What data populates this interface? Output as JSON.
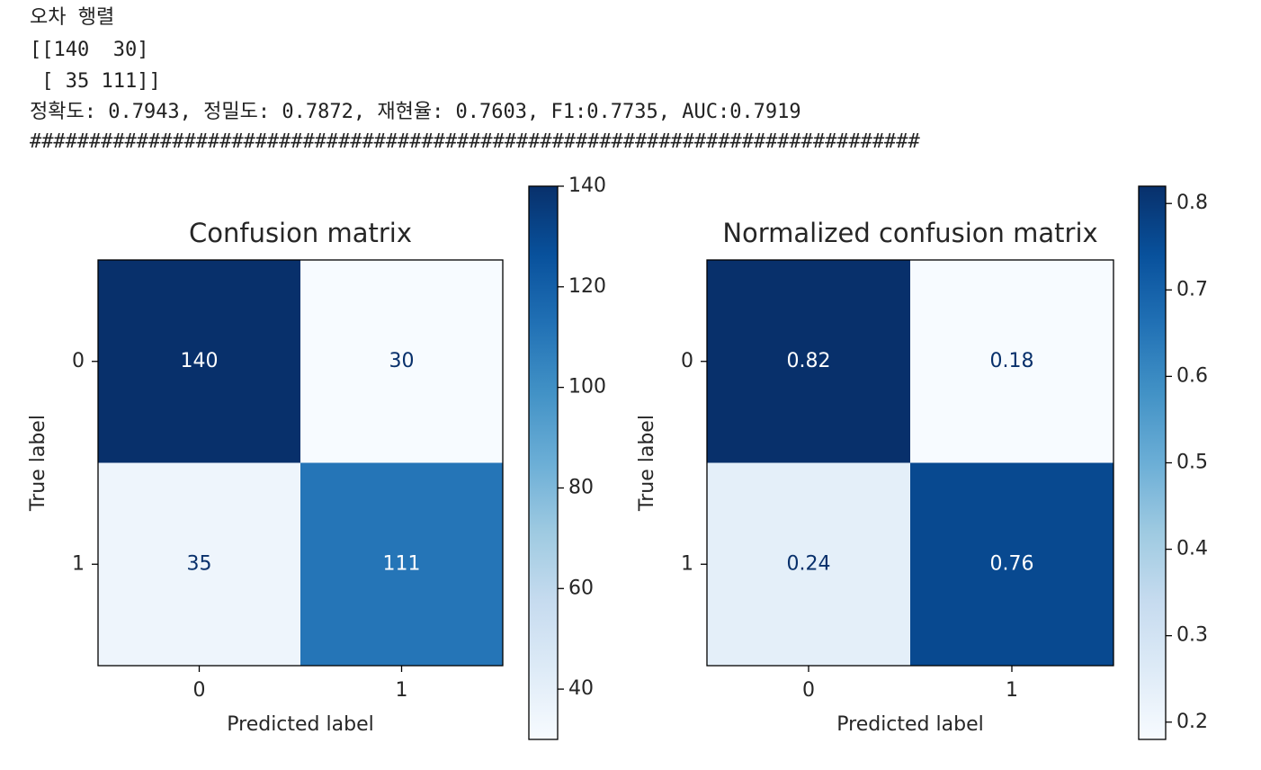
{
  "output": [
    "오차 행렬",
    "[[140  30]",
    " [ 35 111]]",
    "정확도: 0.7943, 정밀도: 0.7872, 재현율: 0.7603, F1:0.7735, AUC:0.7919",
    "###########################################################################"
  ],
  "chart_data": [
    {
      "type": "heatmap",
      "title": "Confusion matrix",
      "x_label": "Predicted label",
      "y_label": "True label",
      "x_categories": [
        "0",
        "1"
      ],
      "y_categories": [
        "0",
        "1"
      ],
      "values": [
        [
          140,
          30
        ],
        [
          35,
          111
        ]
      ],
      "colormap": "Blues",
      "clim": [
        30,
        140
      ],
      "cticks": [
        40,
        60,
        80,
        100,
        120,
        140
      ]
    },
    {
      "type": "heatmap",
      "title": "Normalized confusion matrix",
      "x_label": "Predicted label",
      "y_label": "True label",
      "x_categories": [
        "0",
        "1"
      ],
      "y_categories": [
        "0",
        "1"
      ],
      "values": [
        [
          0.82,
          0.18
        ],
        [
          0.24,
          0.76
        ]
      ],
      "colormap": "Blues",
      "clim": [
        0.18,
        0.82
      ],
      "cticks": [
        0.2,
        0.3,
        0.4,
        0.5,
        0.6,
        0.7,
        0.8
      ]
    }
  ]
}
